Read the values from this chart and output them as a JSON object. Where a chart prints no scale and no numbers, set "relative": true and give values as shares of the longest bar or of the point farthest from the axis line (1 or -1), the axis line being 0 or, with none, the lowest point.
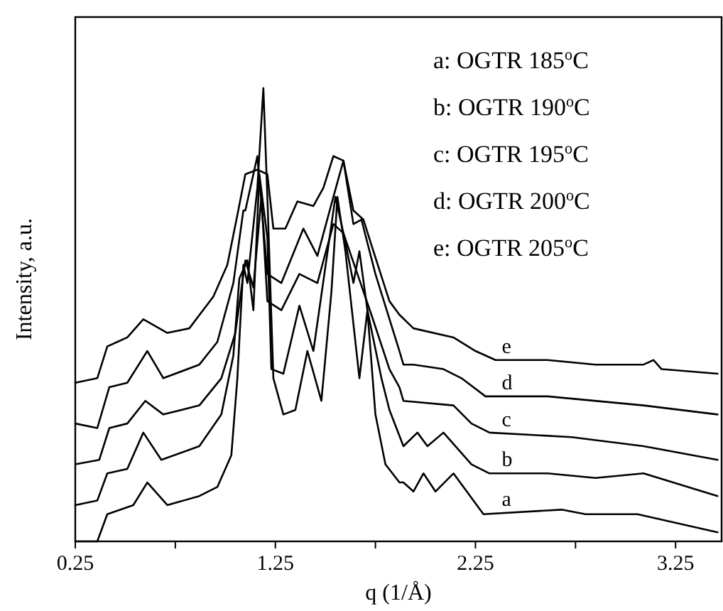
{
  "chart_data": {
    "type": "line",
    "relative": true,
    "xlabel": "q (1/Å)",
    "ylabel": "Intensity, a.u.",
    "xlim": [
      0.25,
      3.48
    ],
    "xticks": [
      0.25,
      {
        "value": 0.75,
        "label": null
      },
      1.25,
      {
        "value": 1.75,
        "label": null
      },
      2.25,
      {
        "value": 2.75,
        "label": null
      },
      3.25
    ],
    "grid": false,
    "marker": "none",
    "line_style": "solid",
    "annotations": [
      "a: OGTR 185$^{o}$C",
      "b: OGTR 190$^{o}$C",
      "c: OGTR 195$^{o}$C",
      "d: OGTR 200$^{o}$C",
      "e: OGTR 205$^{o}$C"
    ],
    "series": [
      {
        "name": "a",
        "color": "#000000",
        "x": [
          0.25,
          0.36,
          0.41,
          0.54,
          0.61,
          0.71,
          0.87,
          0.96,
          1.03,
          1.06,
          1.09,
          1.11,
          1.16,
          1.19,
          1.21,
          1.24,
          1.29,
          1.35,
          1.41,
          1.48,
          1.53,
          1.56,
          1.6,
          1.67,
          1.71,
          1.75,
          1.8,
          1.87,
          1.89,
          1.94,
          1.99,
          2.05,
          2.14,
          2.29,
          2.68,
          2.8,
          3.06,
          3.46
        ],
        "values": [
          0,
          0,
          0.06,
          0.08,
          0.13,
          0.08,
          0.1,
          0.12,
          0.19,
          0.36,
          0.61,
          0.57,
          0.78,
          1.0,
          0.76,
          0.36,
          0.28,
          0.29,
          0.42,
          0.31,
          0.55,
          0.76,
          0.64,
          0.36,
          0.51,
          0.28,
          0.17,
          0.13,
          0.13,
          0.11,
          0.15,
          0.11,
          0.15,
          0.06,
          0.07,
          0.06,
          0.06,
          0.02
        ]
      },
      {
        "name": "b",
        "color": "#000000",
        "x": [
          0.25,
          0.36,
          0.41,
          0.51,
          0.59,
          0.68,
          0.87,
          0.98,
          1.04,
          1.07,
          1.11,
          1.14,
          1.17,
          1.21,
          1.23,
          1.29,
          1.37,
          1.44,
          1.55,
          1.6,
          1.64,
          1.67,
          1.71,
          1.78,
          1.82,
          1.89,
          1.96,
          2.01,
          2.09,
          2.23,
          2.32,
          2.61,
          2.85,
          3.09,
          3.46
        ],
        "values": [
          0.08,
          0.09,
          0.15,
          0.16,
          0.24,
          0.18,
          0.21,
          0.28,
          0.41,
          0.58,
          0.62,
          0.51,
          0.81,
          0.67,
          0.38,
          0.37,
          0.52,
          0.42,
          0.76,
          0.66,
          0.57,
          0.64,
          0.51,
          0.36,
          0.29,
          0.21,
          0.24,
          0.21,
          0.24,
          0.17,
          0.15,
          0.15,
          0.14,
          0.15,
          0.1
        ]
      },
      {
        "name": "c",
        "color": "#000000",
        "x": [
          0.25,
          0.37,
          0.42,
          0.51,
          0.6,
          0.69,
          0.87,
          0.98,
          1.05,
          1.1,
          1.14,
          1.18,
          1.21,
          1.28,
          1.37,
          1.46,
          1.54,
          1.59,
          1.66,
          1.73,
          1.82,
          1.87,
          1.89,
          2.14,
          2.23,
          2.32,
          2.73,
          3.09,
          3.46
        ],
        "values": [
          0.17,
          0.18,
          0.25,
          0.26,
          0.31,
          0.28,
          0.3,
          0.36,
          0.46,
          0.62,
          0.56,
          0.76,
          0.53,
          0.51,
          0.59,
          0.57,
          0.7,
          0.68,
          0.59,
          0.5,
          0.38,
          0.34,
          0.31,
          0.3,
          0.26,
          0.24,
          0.23,
          0.21,
          0.18
        ]
      },
      {
        "name": "d",
        "color": "#000000",
        "x": [
          0.25,
          0.36,
          0.42,
          0.51,
          0.61,
          0.69,
          0.87,
          0.96,
          1.04,
          1.09,
          1.1,
          1.16,
          1.21,
          1.28,
          1.39,
          1.46,
          1.54,
          1.59,
          1.64,
          1.68,
          1.75,
          1.87,
          1.89,
          1.94,
          2.09,
          2.18,
          2.3,
          2.61,
          3.09,
          3.46
        ],
        "values": [
          0.26,
          0.25,
          0.34,
          0.35,
          0.42,
          0.36,
          0.39,
          0.44,
          0.57,
          0.73,
          0.73,
          0.85,
          0.59,
          0.57,
          0.69,
          0.63,
          0.76,
          0.84,
          0.7,
          0.71,
          0.59,
          0.42,
          0.39,
          0.39,
          0.38,
          0.36,
          0.32,
          0.32,
          0.3,
          0.28
        ]
      },
      {
        "name": "e",
        "color": "#000000",
        "x": [
          0.25,
          0.36,
          0.41,
          0.46,
          0.51,
          0.59,
          0.71,
          0.82,
          0.94,
          1.01,
          1.06,
          1.1,
          1.16,
          1.21,
          1.24,
          1.3,
          1.36,
          1.44,
          1.49,
          1.54,
          1.59,
          1.64,
          1.69,
          1.74,
          1.82,
          1.87,
          1.94,
          2.14,
          2.25,
          2.35,
          2.61,
          2.85,
          3.09,
          3.14,
          3.18,
          3.46
        ],
        "values": [
          0.35,
          0.36,
          0.43,
          0.44,
          0.45,
          0.49,
          0.46,
          0.47,
          0.54,
          0.61,
          0.72,
          0.81,
          0.82,
          0.81,
          0.69,
          0.69,
          0.75,
          0.74,
          0.78,
          0.85,
          0.84,
          0.73,
          0.71,
          0.64,
          0.53,
          0.5,
          0.47,
          0.45,
          0.42,
          0.4,
          0.4,
          0.39,
          0.39,
          0.4,
          0.38,
          0.37
        ]
      }
    ]
  }
}
